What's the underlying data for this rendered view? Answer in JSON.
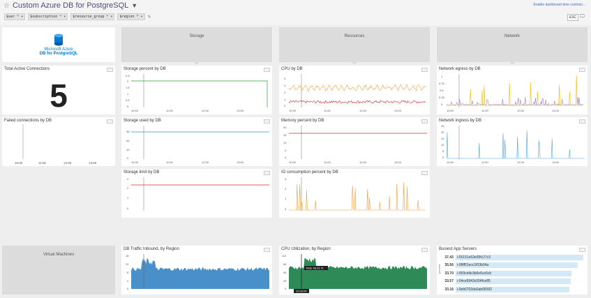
{
  "header": {
    "title": "Custom Azure DB for PostgreSQL",
    "time_link": "Enable dashboard time controls...",
    "esc_label": "ESC",
    "variables": [
      {
        "name": "$var",
        "value": "*"
      },
      {
        "name": "$subscription",
        "value": "*"
      },
      {
        "name": "$resource_group",
        "value": "*"
      },
      {
        "name": "$region",
        "value": "*"
      }
    ]
  },
  "logo": {
    "line1": "Microsoft Azure",
    "line2": "DB for PostgreSQL"
  },
  "notes": {
    "storage": "Storage",
    "resources": "Resources",
    "network": "Network",
    "vms": "Virtual Machines"
  },
  "widgets": {
    "total_active_connections": {
      "title": "Total Active Connections",
      "value": "5"
    },
    "failed_connections": {
      "title": "Failed connections by DB"
    },
    "storage_percent": {
      "title": "Storage percent by DB"
    },
    "storage_used": {
      "title": "Storage used by DB"
    },
    "storage_limit": {
      "title": "Storage limit by DB"
    },
    "cpu": {
      "title": "CPU by DB"
    },
    "memory_percent": {
      "title": "Memory percent by DB"
    },
    "io_consumption": {
      "title": "IO consumption percent by DB"
    },
    "network_egress": {
      "title": "Network egress by DB"
    },
    "network_ingress": {
      "title": "Network ingress by DB"
    },
    "db_traffic": {
      "title": "DB Traffic Inbound, by Region"
    },
    "cpu_util": {
      "title": "CPU Utilization, by Region",
      "tooltip_total": "Total: 93.01 %",
      "tooltip_time": "10:16:00"
    },
    "busiest": {
      "title": "Busiest App Servers",
      "axis_label": "percent",
      "rows": [
        {
          "value": "37.43",
          "label": "i-05151e53e55fc27c3"
        },
        {
          "value": "35.56",
          "label": "i-08ff51ecc1f03b04a"
        },
        {
          "value": "33.70",
          "label": "i-059cd4e3b6e6ce5cb"
        },
        {
          "value": "33.57",
          "label": "i-04ce5943c004fce85"
        },
        {
          "value": "33.16",
          "label": "i-0eb6703da0ab08392"
        }
      ]
    }
  },
  "chart_data": [
    {
      "type": "line",
      "name": "storage-percent",
      "x": [
        "10:00",
        "11:00",
        "12:00",
        "13:00"
      ],
      "y_ticks": [
        "0",
        "0.5",
        "1",
        "1.5",
        "2",
        "2.5"
      ],
      "series": [
        {
          "color": "#2ca02c"
        }
      ]
    },
    {
      "type": "line",
      "name": "storage-used",
      "y_ticks": [
        "0",
        "32",
        "64",
        "96"
      ],
      "x": [
        "10:00",
        "11:00",
        "12:00",
        "13:00"
      ],
      "series": [
        {
          "color": "#1f9db8"
        }
      ]
    },
    {
      "type": "line",
      "name": "storage-limit",
      "y_ticks": [
        "0",
        "1",
        "2",
        "3"
      ],
      "x": [
        "10:00",
        "11:00",
        "12:00",
        "13:00"
      ],
      "series": [
        {
          "color": "#d62728"
        }
      ]
    },
    {
      "type": "line",
      "name": "cpu",
      "y_ticks": [
        "0",
        "1",
        "2",
        "3",
        "4"
      ],
      "x": [
        "10:00",
        "11:00",
        "12:00",
        "13:00"
      ],
      "series": [
        {
          "color": "#f39c3c"
        },
        {
          "color": "#d62728"
        }
      ]
    },
    {
      "type": "line",
      "name": "memory",
      "y_ticks": [
        "0",
        "5",
        "10",
        "15",
        "20"
      ],
      "x": [
        "10:00",
        "11:00",
        "12:00",
        "13:00"
      ],
      "series": [
        {
          "color": "#d62728"
        }
      ]
    },
    {
      "type": "line",
      "name": "io",
      "y_ticks": [
        "0",
        "1",
        "2",
        "3"
      ],
      "x": [
        "10:00",
        "11:00",
        "12:00",
        "13:00"
      ],
      "series": [
        {
          "color": "#f39c3c"
        }
      ]
    },
    {
      "type": "line",
      "name": "egress",
      "y_ticks": [
        "0",
        "0.25",
        "0.5",
        "0.75",
        "1"
      ],
      "x": [
        "10:00",
        "11:00",
        "12:00",
        "13:00"
      ],
      "series": [
        {
          "color": "#f0c419"
        },
        {
          "color": "#7b68c8"
        }
      ]
    },
    {
      "type": "line",
      "name": "ingress",
      "y_ticks": [
        "0",
        "5",
        "10",
        "15",
        "20",
        "25"
      ],
      "x": [
        "10:00",
        "11:00",
        "12:00",
        "13:00"
      ],
      "series": [
        {
          "color": "#4aa3df"
        }
      ]
    },
    {
      "type": "line",
      "name": "failed",
      "x": [
        "10:00",
        "11:00",
        "12:00",
        "13:00"
      ],
      "series": []
    },
    {
      "type": "area",
      "name": "db-traffic",
      "y_ticks": [
        "0",
        "4",
        "8",
        "12",
        "16"
      ],
      "series": [
        {
          "color": "#b39ddb"
        },
        {
          "color": "#f5c518"
        },
        {
          "color": "#4a90c8"
        }
      ]
    },
    {
      "type": "area",
      "name": "cpu-util",
      "y_ticks": [
        "0",
        "28",
        "56",
        "84",
        "112"
      ],
      "series": [
        {
          "color": "#b39ddb"
        },
        {
          "color": "#f5c518"
        },
        {
          "color": "#4a90c8"
        },
        {
          "color": "#2e8b57"
        }
      ]
    }
  ]
}
